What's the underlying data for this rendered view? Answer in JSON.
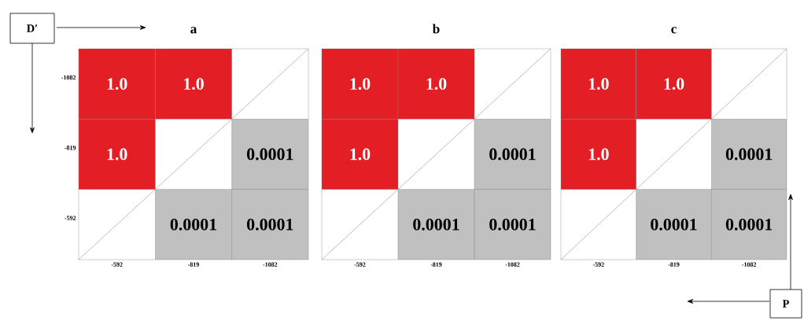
{
  "chart_data": [
    {
      "type": "heatmap",
      "title": "a",
      "categories": [
        "-592",
        "-819",
        "-1082"
      ],
      "y_categories": [
        "-1082",
        "-819",
        "-592"
      ],
      "cells": [
        [
          1.0,
          1.0,
          null
        ],
        [
          1.0,
          null,
          0.0001
        ],
        [
          null,
          0.0001,
          0.0001
        ]
      ],
      "cell_labels": [
        [
          "1.0",
          "1.0",
          null
        ],
        [
          "1.0",
          null,
          "0.0001"
        ],
        [
          null,
          "0.0001",
          "0.0001"
        ]
      ],
      "annotations": [
        "D′"
      ]
    },
    {
      "type": "heatmap",
      "title": "b",
      "categories": [
        "-592",
        "-819",
        "-1082"
      ],
      "y_categories": [
        "-1082",
        "-819",
        "-592"
      ],
      "cells": [
        [
          1.0,
          1.0,
          null
        ],
        [
          1.0,
          null,
          0.0001
        ],
        [
          null,
          0.0001,
          0.0001
        ]
      ],
      "cell_labels": [
        [
          "1.0",
          "1.0",
          null
        ],
        [
          "1.0",
          null,
          "0.0001"
        ],
        [
          null,
          "0.0001",
          "0.0001"
        ]
      ],
      "tick_labels": "x"
    },
    {
      "type": "heatmap",
      "title": "c",
      "categories": [
        "-592",
        "-819",
        "-1082"
      ],
      "y_categories": [
        "-1082",
        "-819",
        "-592"
      ],
      "cells": [
        [
          1.0,
          1.0,
          null
        ],
        [
          1.0,
          null,
          0.0001
        ],
        [
          null,
          0.0001,
          0.0001
        ]
      ],
      "cell_labels": [
        [
          "1.0",
          "1.0",
          null
        ],
        [
          "1.0",
          null,
          "0.0001"
        ],
        [
          null,
          "0.0001",
          "0.0001"
        ]
      ],
      "tick_labels": "x",
      "annotations": [
        "P"
      ]
    }
  ]
}
